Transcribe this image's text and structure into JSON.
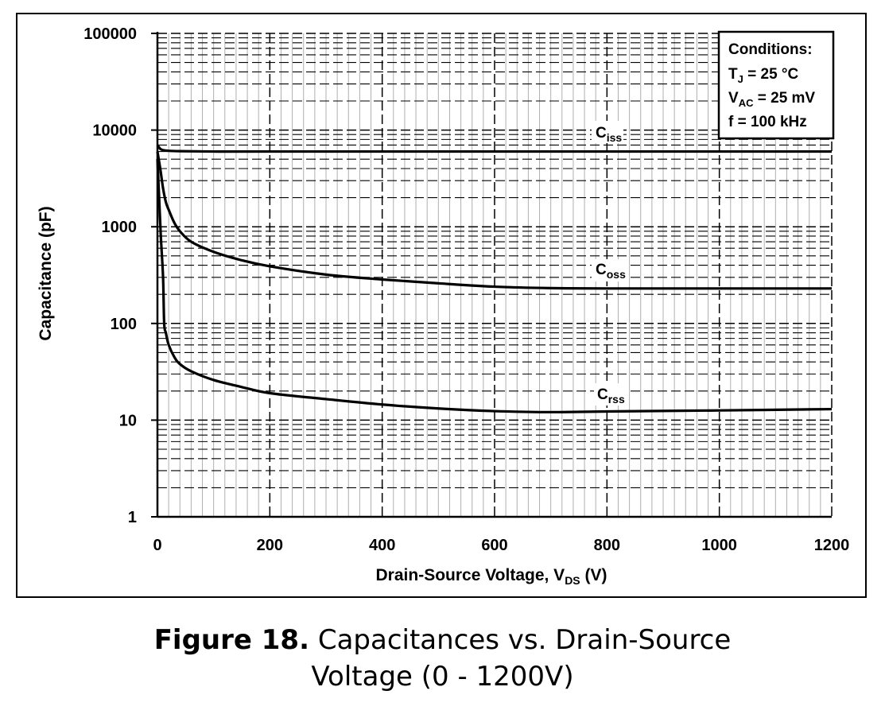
{
  "chart_data": {
    "type": "line",
    "xlabel": {
      "main": "Drain-Source Voltage, V",
      "sub": "DS",
      "unit": " (V)"
    },
    "ylabel": "Capacitance (pF)",
    "xlim": [
      0,
      1200
    ],
    "ylim": [
      1,
      100000
    ],
    "yscale": "log",
    "xticks": [
      0,
      200,
      400,
      600,
      800,
      1000,
      1200
    ],
    "yticks": [
      1,
      10,
      100,
      1000,
      10000,
      100000
    ],
    "ytick_labels": [
      "1",
      "10",
      "100",
      "1000",
      "10000",
      "100000"
    ],
    "grid": true,
    "legend": "inline labels",
    "series": [
      {
        "name": "iss",
        "label_main": "C",
        "label_sub": "iss",
        "x": [
          0,
          5,
          10,
          20,
          40,
          100,
          200,
          400,
          600,
          800,
          1000,
          1200
        ],
        "y": [
          7000,
          6400,
          6200,
          6100,
          6050,
          6000,
          6000,
          6000,
          6000,
          6000,
          6000,
          6000
        ]
      },
      {
        "name": "oss",
        "label_main": "C",
        "label_sub": "oss",
        "x": [
          0,
          5,
          10,
          15,
          20,
          30,
          40,
          60,
          100,
          150,
          200,
          300,
          400,
          500,
          600,
          700,
          800,
          1000,
          1200
        ],
        "y": [
          6000,
          4000,
          2500,
          1800,
          1500,
          1100,
          900,
          700,
          550,
          450,
          390,
          320,
          285,
          260,
          240,
          232,
          230,
          230,
          230
        ]
      },
      {
        "name": "rss",
        "label_main": "C",
        "label_sub": "rss",
        "x": [
          0,
          3,
          6,
          10,
          12,
          15,
          20,
          30,
          40,
          60,
          100,
          150,
          200,
          300,
          400,
          500,
          600,
          700,
          800,
          1000,
          1200
        ],
        "y": [
          5000,
          2000,
          800,
          300,
          100,
          80,
          60,
          45,
          38,
          32,
          26,
          22,
          19,
          16.5,
          14.5,
          13.2,
          12.4,
          12.1,
          12.3,
          12.6,
          13
        ]
      }
    ]
  },
  "conditions": {
    "title": "Conditions:",
    "tj": {
      "main": "T",
      "sub": "J",
      "rest": " = 25 °C"
    },
    "vac": {
      "main": "V",
      "sub": "AC",
      "rest": " = 25 mV"
    },
    "freq": "f = 100 kHz"
  },
  "caption": {
    "bold": "Figure 18.",
    "line1": " Capacitances vs. Drain-Source",
    "line2": "Voltage (0 - 1200V)"
  },
  "colors": {
    "line": "#000000",
    "grid": "#000000",
    "minor_grid": "#b0b0b0",
    "background": "#ffffff"
  }
}
